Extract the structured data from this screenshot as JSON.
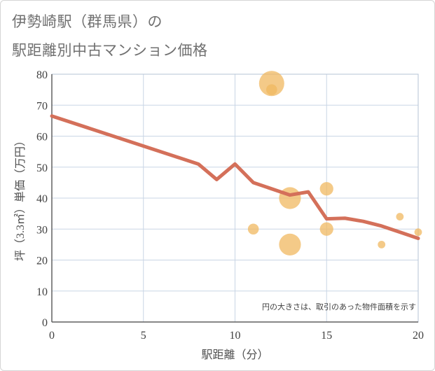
{
  "title_lines": [
    "伊勢崎駅（群馬県）の",
    "駅距離別中古マンション価格"
  ],
  "chart_data": {
    "type": "scatter",
    "xlabel": "駅距離（分）",
    "ylabel": "坪（3.3㎡）単価（万円）",
    "xlim": [
      0,
      20
    ],
    "ylim": [
      0,
      80
    ],
    "x_ticks": [
      0,
      5,
      10,
      15,
      20
    ],
    "y_ticks": [
      0,
      10,
      20,
      30,
      40,
      50,
      60,
      70,
      80
    ],
    "grid": true,
    "note": "円の大きさは、取引のあった物件面積を示す",
    "trend_line": {
      "color": "#d4705a",
      "x": [
        0,
        8,
        9,
        10,
        11,
        13,
        14,
        15,
        16,
        17,
        18,
        19,
        20
      ],
      "y": [
        66.5,
        51,
        46,
        51,
        45,
        41,
        42,
        33.3,
        33.5,
        32.5,
        31,
        29,
        27
      ]
    },
    "bubbles": {
      "color": "#f0b860",
      "points": [
        {
          "x": 12,
          "y": 77,
          "size": 3
        },
        {
          "x": 12,
          "y": 75,
          "size": 1.3
        },
        {
          "x": 11,
          "y": 30,
          "size": 1.3
        },
        {
          "x": 13,
          "y": 40,
          "size": 2.6
        },
        {
          "x": 13,
          "y": 25,
          "size": 2.6
        },
        {
          "x": 15,
          "y": 43,
          "size": 1.6
        },
        {
          "x": 15,
          "y": 30,
          "size": 1.6
        },
        {
          "x": 18,
          "y": 25,
          "size": 0.9
        },
        {
          "x": 19,
          "y": 34,
          "size": 0.9
        },
        {
          "x": 20,
          "y": 29,
          "size": 0.9
        }
      ]
    }
  }
}
